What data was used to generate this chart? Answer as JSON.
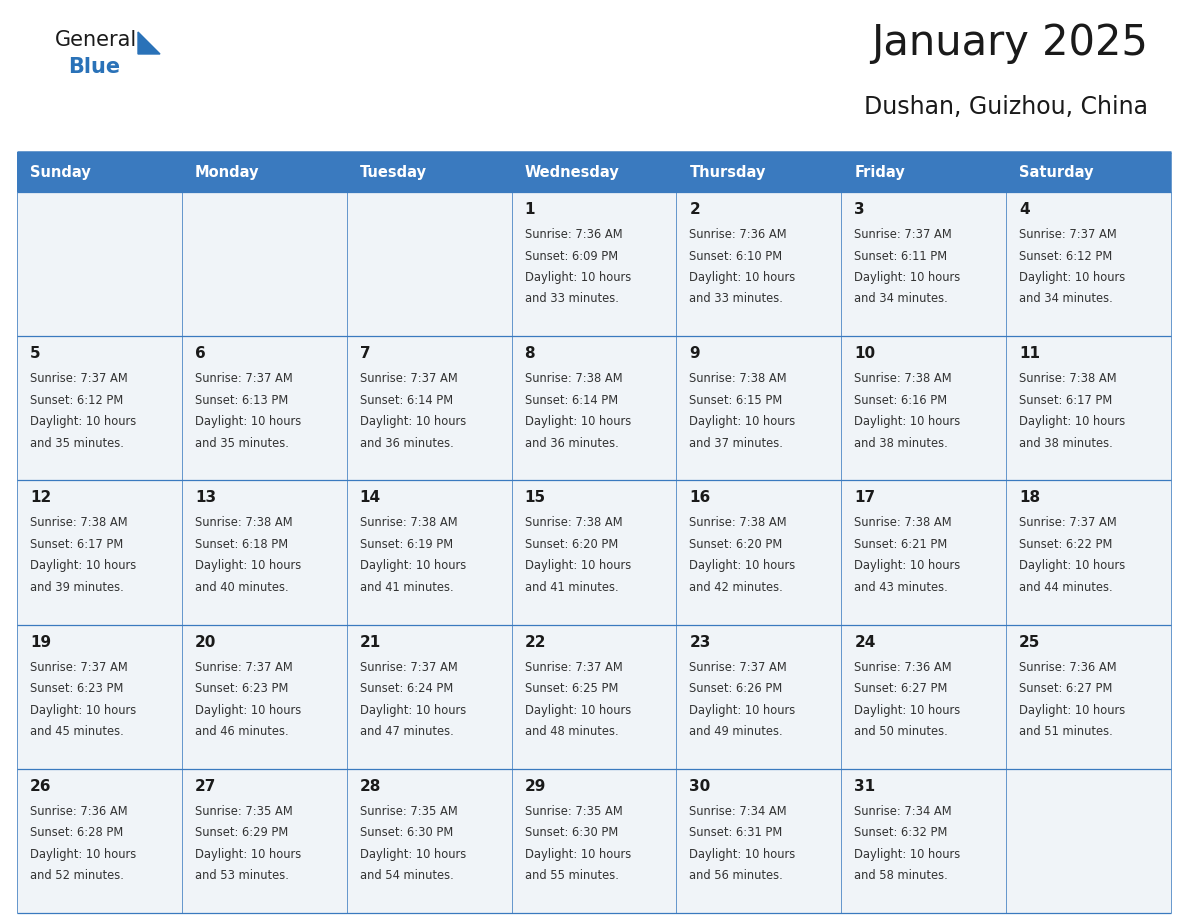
{
  "title": "January 2025",
  "subtitle": "Dushan, Guizhou, China",
  "days_of_week": [
    "Sunday",
    "Monday",
    "Tuesday",
    "Wednesday",
    "Thursday",
    "Friday",
    "Saturday"
  ],
  "header_bg": "#3a7abf",
  "header_text": "#ffffff",
  "row_bg": "#f0f4f8",
  "border_color": "#3a7abf",
  "day_num_color": "#1a1a1a",
  "cell_text_color": "#333333",
  "logo_general_color": "#1a1a1a",
  "logo_blue_color": "#2a72b8",
  "weeks": [
    [
      {
        "day": null,
        "info": ""
      },
      {
        "day": null,
        "info": ""
      },
      {
        "day": null,
        "info": ""
      },
      {
        "day": 1,
        "info": "Sunrise: 7:36 AM\nSunset: 6:09 PM\nDaylight: 10 hours\nand 33 minutes."
      },
      {
        "day": 2,
        "info": "Sunrise: 7:36 AM\nSunset: 6:10 PM\nDaylight: 10 hours\nand 33 minutes."
      },
      {
        "day": 3,
        "info": "Sunrise: 7:37 AM\nSunset: 6:11 PM\nDaylight: 10 hours\nand 34 minutes."
      },
      {
        "day": 4,
        "info": "Sunrise: 7:37 AM\nSunset: 6:12 PM\nDaylight: 10 hours\nand 34 minutes."
      }
    ],
    [
      {
        "day": 5,
        "info": "Sunrise: 7:37 AM\nSunset: 6:12 PM\nDaylight: 10 hours\nand 35 minutes."
      },
      {
        "day": 6,
        "info": "Sunrise: 7:37 AM\nSunset: 6:13 PM\nDaylight: 10 hours\nand 35 minutes."
      },
      {
        "day": 7,
        "info": "Sunrise: 7:37 AM\nSunset: 6:14 PM\nDaylight: 10 hours\nand 36 minutes."
      },
      {
        "day": 8,
        "info": "Sunrise: 7:38 AM\nSunset: 6:14 PM\nDaylight: 10 hours\nand 36 minutes."
      },
      {
        "day": 9,
        "info": "Sunrise: 7:38 AM\nSunset: 6:15 PM\nDaylight: 10 hours\nand 37 minutes."
      },
      {
        "day": 10,
        "info": "Sunrise: 7:38 AM\nSunset: 6:16 PM\nDaylight: 10 hours\nand 38 minutes."
      },
      {
        "day": 11,
        "info": "Sunrise: 7:38 AM\nSunset: 6:17 PM\nDaylight: 10 hours\nand 38 minutes."
      }
    ],
    [
      {
        "day": 12,
        "info": "Sunrise: 7:38 AM\nSunset: 6:17 PM\nDaylight: 10 hours\nand 39 minutes."
      },
      {
        "day": 13,
        "info": "Sunrise: 7:38 AM\nSunset: 6:18 PM\nDaylight: 10 hours\nand 40 minutes."
      },
      {
        "day": 14,
        "info": "Sunrise: 7:38 AM\nSunset: 6:19 PM\nDaylight: 10 hours\nand 41 minutes."
      },
      {
        "day": 15,
        "info": "Sunrise: 7:38 AM\nSunset: 6:20 PM\nDaylight: 10 hours\nand 41 minutes."
      },
      {
        "day": 16,
        "info": "Sunrise: 7:38 AM\nSunset: 6:20 PM\nDaylight: 10 hours\nand 42 minutes."
      },
      {
        "day": 17,
        "info": "Sunrise: 7:38 AM\nSunset: 6:21 PM\nDaylight: 10 hours\nand 43 minutes."
      },
      {
        "day": 18,
        "info": "Sunrise: 7:37 AM\nSunset: 6:22 PM\nDaylight: 10 hours\nand 44 minutes."
      }
    ],
    [
      {
        "day": 19,
        "info": "Sunrise: 7:37 AM\nSunset: 6:23 PM\nDaylight: 10 hours\nand 45 minutes."
      },
      {
        "day": 20,
        "info": "Sunrise: 7:37 AM\nSunset: 6:23 PM\nDaylight: 10 hours\nand 46 minutes."
      },
      {
        "day": 21,
        "info": "Sunrise: 7:37 AM\nSunset: 6:24 PM\nDaylight: 10 hours\nand 47 minutes."
      },
      {
        "day": 22,
        "info": "Sunrise: 7:37 AM\nSunset: 6:25 PM\nDaylight: 10 hours\nand 48 minutes."
      },
      {
        "day": 23,
        "info": "Sunrise: 7:37 AM\nSunset: 6:26 PM\nDaylight: 10 hours\nand 49 minutes."
      },
      {
        "day": 24,
        "info": "Sunrise: 7:36 AM\nSunset: 6:27 PM\nDaylight: 10 hours\nand 50 minutes."
      },
      {
        "day": 25,
        "info": "Sunrise: 7:36 AM\nSunset: 6:27 PM\nDaylight: 10 hours\nand 51 minutes."
      }
    ],
    [
      {
        "day": 26,
        "info": "Sunrise: 7:36 AM\nSunset: 6:28 PM\nDaylight: 10 hours\nand 52 minutes."
      },
      {
        "day": 27,
        "info": "Sunrise: 7:35 AM\nSunset: 6:29 PM\nDaylight: 10 hours\nand 53 minutes."
      },
      {
        "day": 28,
        "info": "Sunrise: 7:35 AM\nSunset: 6:30 PM\nDaylight: 10 hours\nand 54 minutes."
      },
      {
        "day": 29,
        "info": "Sunrise: 7:35 AM\nSunset: 6:30 PM\nDaylight: 10 hours\nand 55 minutes."
      },
      {
        "day": 30,
        "info": "Sunrise: 7:34 AM\nSunset: 6:31 PM\nDaylight: 10 hours\nand 56 minutes."
      },
      {
        "day": 31,
        "info": "Sunrise: 7:34 AM\nSunset: 6:32 PM\nDaylight: 10 hours\nand 58 minutes."
      },
      {
        "day": null,
        "info": ""
      }
    ]
  ]
}
